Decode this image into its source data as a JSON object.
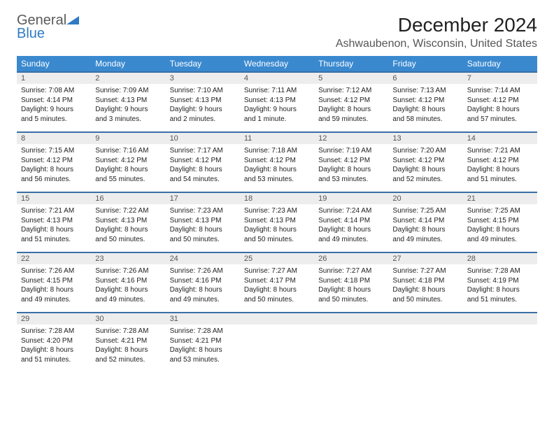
{
  "logo": {
    "line1": "General",
    "line2": "Blue"
  },
  "header": {
    "month_title": "December 2024",
    "location": "Ashwaubenon, Wisconsin, United States"
  },
  "weekdays": [
    "Sunday",
    "Monday",
    "Tuesday",
    "Wednesday",
    "Thursday",
    "Friday",
    "Saturday"
  ],
  "colors": {
    "header_bg": "#3a89cf",
    "daynum_bg": "#ededed",
    "row_border": "#3a6fa6",
    "logo_blue": "#2f7bc4"
  },
  "days": [
    {
      "n": "1",
      "sr": "Sunrise: 7:08 AM",
      "ss": "Sunset: 4:14 PM",
      "dl": "Daylight: 9 hours and 5 minutes."
    },
    {
      "n": "2",
      "sr": "Sunrise: 7:09 AM",
      "ss": "Sunset: 4:13 PM",
      "dl": "Daylight: 9 hours and 3 minutes."
    },
    {
      "n": "3",
      "sr": "Sunrise: 7:10 AM",
      "ss": "Sunset: 4:13 PM",
      "dl": "Daylight: 9 hours and 2 minutes."
    },
    {
      "n": "4",
      "sr": "Sunrise: 7:11 AM",
      "ss": "Sunset: 4:13 PM",
      "dl": "Daylight: 9 hours and 1 minute."
    },
    {
      "n": "5",
      "sr": "Sunrise: 7:12 AM",
      "ss": "Sunset: 4:12 PM",
      "dl": "Daylight: 8 hours and 59 minutes."
    },
    {
      "n": "6",
      "sr": "Sunrise: 7:13 AM",
      "ss": "Sunset: 4:12 PM",
      "dl": "Daylight: 8 hours and 58 minutes."
    },
    {
      "n": "7",
      "sr": "Sunrise: 7:14 AM",
      "ss": "Sunset: 4:12 PM",
      "dl": "Daylight: 8 hours and 57 minutes."
    },
    {
      "n": "8",
      "sr": "Sunrise: 7:15 AM",
      "ss": "Sunset: 4:12 PM",
      "dl": "Daylight: 8 hours and 56 minutes."
    },
    {
      "n": "9",
      "sr": "Sunrise: 7:16 AM",
      "ss": "Sunset: 4:12 PM",
      "dl": "Daylight: 8 hours and 55 minutes."
    },
    {
      "n": "10",
      "sr": "Sunrise: 7:17 AM",
      "ss": "Sunset: 4:12 PM",
      "dl": "Daylight: 8 hours and 54 minutes."
    },
    {
      "n": "11",
      "sr": "Sunrise: 7:18 AM",
      "ss": "Sunset: 4:12 PM",
      "dl": "Daylight: 8 hours and 53 minutes."
    },
    {
      "n": "12",
      "sr": "Sunrise: 7:19 AM",
      "ss": "Sunset: 4:12 PM",
      "dl": "Daylight: 8 hours and 53 minutes."
    },
    {
      "n": "13",
      "sr": "Sunrise: 7:20 AM",
      "ss": "Sunset: 4:12 PM",
      "dl": "Daylight: 8 hours and 52 minutes."
    },
    {
      "n": "14",
      "sr": "Sunrise: 7:21 AM",
      "ss": "Sunset: 4:12 PM",
      "dl": "Daylight: 8 hours and 51 minutes."
    },
    {
      "n": "15",
      "sr": "Sunrise: 7:21 AM",
      "ss": "Sunset: 4:13 PM",
      "dl": "Daylight: 8 hours and 51 minutes."
    },
    {
      "n": "16",
      "sr": "Sunrise: 7:22 AM",
      "ss": "Sunset: 4:13 PM",
      "dl": "Daylight: 8 hours and 50 minutes."
    },
    {
      "n": "17",
      "sr": "Sunrise: 7:23 AM",
      "ss": "Sunset: 4:13 PM",
      "dl": "Daylight: 8 hours and 50 minutes."
    },
    {
      "n": "18",
      "sr": "Sunrise: 7:23 AM",
      "ss": "Sunset: 4:13 PM",
      "dl": "Daylight: 8 hours and 50 minutes."
    },
    {
      "n": "19",
      "sr": "Sunrise: 7:24 AM",
      "ss": "Sunset: 4:14 PM",
      "dl": "Daylight: 8 hours and 49 minutes."
    },
    {
      "n": "20",
      "sr": "Sunrise: 7:25 AM",
      "ss": "Sunset: 4:14 PM",
      "dl": "Daylight: 8 hours and 49 minutes."
    },
    {
      "n": "21",
      "sr": "Sunrise: 7:25 AM",
      "ss": "Sunset: 4:15 PM",
      "dl": "Daylight: 8 hours and 49 minutes."
    },
    {
      "n": "22",
      "sr": "Sunrise: 7:26 AM",
      "ss": "Sunset: 4:15 PM",
      "dl": "Daylight: 8 hours and 49 minutes."
    },
    {
      "n": "23",
      "sr": "Sunrise: 7:26 AM",
      "ss": "Sunset: 4:16 PM",
      "dl": "Daylight: 8 hours and 49 minutes."
    },
    {
      "n": "24",
      "sr": "Sunrise: 7:26 AM",
      "ss": "Sunset: 4:16 PM",
      "dl": "Daylight: 8 hours and 49 minutes."
    },
    {
      "n": "25",
      "sr": "Sunrise: 7:27 AM",
      "ss": "Sunset: 4:17 PM",
      "dl": "Daylight: 8 hours and 50 minutes."
    },
    {
      "n": "26",
      "sr": "Sunrise: 7:27 AM",
      "ss": "Sunset: 4:18 PM",
      "dl": "Daylight: 8 hours and 50 minutes."
    },
    {
      "n": "27",
      "sr": "Sunrise: 7:27 AM",
      "ss": "Sunset: 4:18 PM",
      "dl": "Daylight: 8 hours and 50 minutes."
    },
    {
      "n": "28",
      "sr": "Sunrise: 7:28 AM",
      "ss": "Sunset: 4:19 PM",
      "dl": "Daylight: 8 hours and 51 minutes."
    },
    {
      "n": "29",
      "sr": "Sunrise: 7:28 AM",
      "ss": "Sunset: 4:20 PM",
      "dl": "Daylight: 8 hours and 51 minutes."
    },
    {
      "n": "30",
      "sr": "Sunrise: 7:28 AM",
      "ss": "Sunset: 4:21 PM",
      "dl": "Daylight: 8 hours and 52 minutes."
    },
    {
      "n": "31",
      "sr": "Sunrise: 7:28 AM",
      "ss": "Sunset: 4:21 PM",
      "dl": "Daylight: 8 hours and 53 minutes."
    }
  ]
}
